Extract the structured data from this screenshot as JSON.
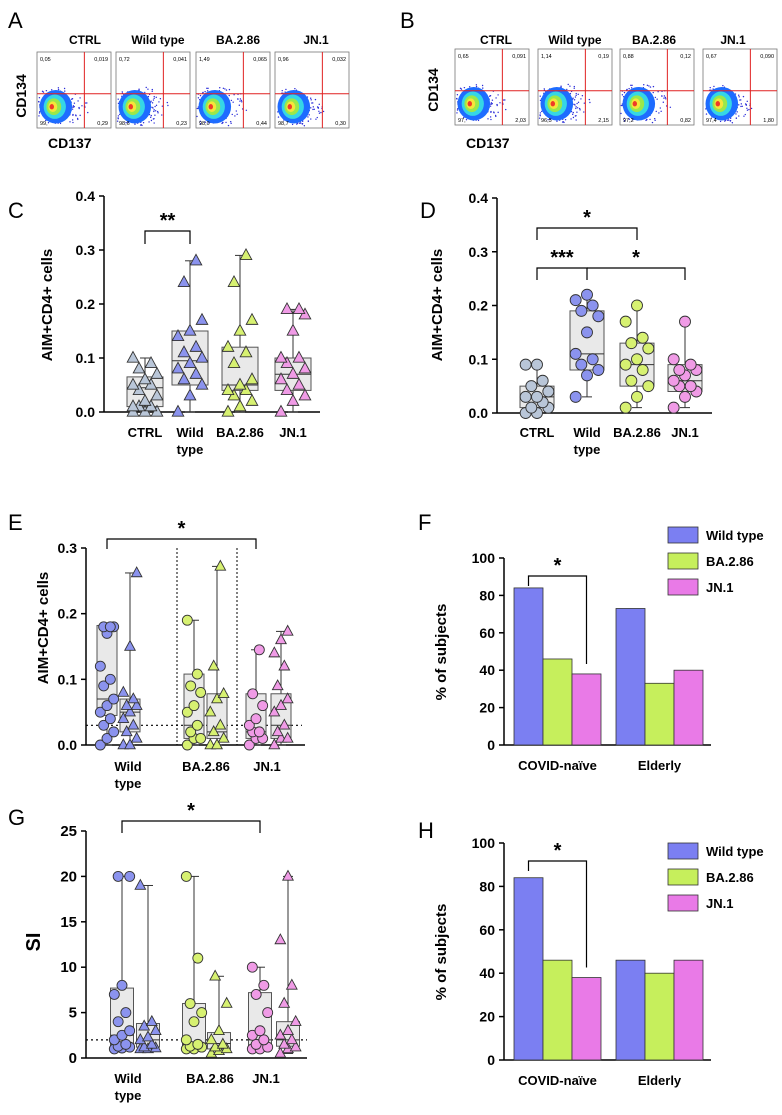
{
  "figure": {
    "letters": {
      "A": "A",
      "B": "B",
      "C": "C",
      "D": "D",
      "E": "E",
      "F": "F",
      "G": "G",
      "H": "H"
    }
  },
  "colors": {
    "wt": "#8b93ee",
    "ba": "#d7f171",
    "jn": "#f09be6",
    "ctrl": "#b9c6d8",
    "bar_wt": "#7b7ff2",
    "bar_ba": "#c6ef5c",
    "bar_jn": "#e97ae7"
  },
  "flow": {
    "A": {
      "ylabel": "CD134",
      "xlabel": "CD137",
      "headers": [
        "CTRL",
        "Wild type",
        "BA.2.86",
        "JN.1"
      ],
      "quads": [
        {
          "ul": "0,05",
          "ur": "0,019",
          "ll": "99,",
          "lr": "0,29"
        },
        {
          "ul": "0,72",
          "ur": "0,041",
          "ll": "98,6",
          "lr": "0,23"
        },
        {
          "ul": "1,49",
          "ur": "0,065",
          "ll": "98,0",
          "lr": "0,44"
        },
        {
          "ul": "0,96",
          "ur": "0,032",
          "ll": "98,7",
          "lr": "0,30"
        }
      ]
    },
    "B": {
      "ylabel": "CD134",
      "xlabel": "CD137",
      "headers": [
        "CTRL",
        "Wild type",
        "BA.2.86",
        "JN.1"
      ],
      "quads": [
        {
          "ul": "0,65",
          "ur": "0,091",
          "ll": "97,",
          "lr": "2,03"
        },
        {
          "ul": "1,14",
          "ur": "0,19",
          "ll": "96,5",
          "lr": "2,15"
        },
        {
          "ul": "0,88",
          "ur": "0,12",
          "ll": "97,2",
          "lr": "0,82"
        },
        {
          "ul": "0,67",
          "ur": "0,090",
          "ll": "97,4",
          "lr": "1,80"
        }
      ]
    }
  },
  "chart_data": [
    {
      "panel": "C",
      "type": "box",
      "ylabel": "AIM+CD4+ cells",
      "ylim": [
        0,
        0.4
      ],
      "yticks": [
        "0.0",
        "0.1",
        "0.2",
        "0.3",
        "0.4"
      ],
      "categories": [
        "CTRL",
        "Wild type",
        "BA.2.86",
        "JN.1"
      ],
      "boxes": [
        {
          "name": "CTRL",
          "min": 0.0,
          "q1": 0.01,
          "median": 0.045,
          "q3": 0.065,
          "max": 0.1,
          "points": [
            0.0,
            0.0,
            0.0,
            0.01,
            0.01,
            0.01,
            0.02,
            0.03,
            0.04,
            0.05,
            0.05,
            0.06,
            0.07,
            0.08,
            0.09,
            0.1
          ]
        },
        {
          "name": "Wild type",
          "min": 0.0,
          "q1": 0.05,
          "median": 0.095,
          "q3": 0.15,
          "max": 0.28,
          "points": [
            0.0,
            0.03,
            0.05,
            0.06,
            0.07,
            0.08,
            0.09,
            0.1,
            0.11,
            0.12,
            0.14,
            0.15,
            0.17,
            0.24,
            0.28
          ]
        },
        {
          "name": "BA.2.86",
          "min": 0.0,
          "q1": 0.04,
          "median": 0.05,
          "q3": 0.12,
          "max": 0.29,
          "points": [
            0.0,
            0.01,
            0.02,
            0.03,
            0.04,
            0.04,
            0.05,
            0.06,
            0.09,
            0.11,
            0.12,
            0.15,
            0.17,
            0.24,
            0.29
          ]
        },
        {
          "name": "JN.1",
          "min": 0.0,
          "q1": 0.04,
          "median": 0.07,
          "q3": 0.1,
          "max": 0.19,
          "points": [
            0.0,
            0.02,
            0.03,
            0.04,
            0.05,
            0.06,
            0.07,
            0.08,
            0.09,
            0.1,
            0.1,
            0.15,
            0.18,
            0.19,
            0.19
          ]
        }
      ],
      "significance": [
        {
          "from": "CTRL",
          "to": "Wild type",
          "label": "**"
        }
      ]
    },
    {
      "panel": "D",
      "type": "box",
      "ylabel": "AIM+CD4+ cells",
      "ylim": [
        0,
        0.4
      ],
      "yticks": [
        "0.0",
        "0.1",
        "0.2",
        "0.3",
        "0.4"
      ],
      "categories": [
        "CTRL",
        "Wild type",
        "BA.2.86",
        "JN.1"
      ],
      "boxes": [
        {
          "name": "CTRL",
          "min": 0.0,
          "q1": 0.01,
          "median": 0.03,
          "q3": 0.05,
          "max": 0.09,
          "points": [
            0.0,
            0.0,
            0.01,
            0.01,
            0.02,
            0.03,
            0.03,
            0.04,
            0.05,
            0.06,
            0.09,
            0.09
          ]
        },
        {
          "name": "Wild type",
          "min": 0.03,
          "q1": 0.08,
          "median": 0.11,
          "q3": 0.19,
          "max": 0.22,
          "points": [
            0.03,
            0.07,
            0.08,
            0.09,
            0.1,
            0.11,
            0.15,
            0.18,
            0.19,
            0.2,
            0.21,
            0.22
          ]
        },
        {
          "name": "BA.2.86",
          "min": 0.01,
          "q1": 0.05,
          "median": 0.09,
          "q3": 0.13,
          "max": 0.2,
          "points": [
            0.01,
            0.03,
            0.05,
            0.06,
            0.08,
            0.09,
            0.1,
            0.12,
            0.13,
            0.14,
            0.17,
            0.2
          ]
        },
        {
          "name": "JN.1",
          "min": 0.01,
          "q1": 0.04,
          "median": 0.06,
          "q3": 0.09,
          "max": 0.17,
          "points": [
            0.01,
            0.03,
            0.04,
            0.05,
            0.05,
            0.06,
            0.07,
            0.08,
            0.08,
            0.09,
            0.1,
            0.17
          ]
        }
      ],
      "significance": [
        {
          "from": "CTRL",
          "to": "Wild type",
          "label": "***"
        },
        {
          "from": "Wild type",
          "to": "JN.1",
          "label": "*"
        },
        {
          "from": "CTRL",
          "to": "BA.2.86",
          "label": "*"
        }
      ]
    },
    {
      "panel": "E",
      "type": "box",
      "ylabel": "AIM+CD4+ cells",
      "ylim": [
        0,
        0.3
      ],
      "yticks": [
        "0.0",
        "0.1",
        "0.2",
        "0.3"
      ],
      "categories": [
        "Wild type",
        "BA.2.86",
        "JN.1"
      ],
      "threshold": 0.03,
      "boxes": [
        {
          "name": "Wild type · COVID-naïve",
          "shape": "circle",
          "min": 0.0,
          "q1": 0.045,
          "median": 0.07,
          "q3": 0.182,
          "max": 0.182,
          "points": [
            0.0,
            0.01,
            0.02,
            0.03,
            0.04,
            0.05,
            0.06,
            0.07,
            0.09,
            0.1,
            0.12,
            0.17,
            0.18,
            0.18,
            0.18
          ]
        },
        {
          "name": "Wild type · Elderly",
          "shape": "triangle",
          "min": 0.0,
          "q1": 0.02,
          "median": 0.05,
          "q3": 0.07,
          "max": 0.262,
          "points": [
            0.0,
            0.0,
            0.01,
            0.02,
            0.03,
            0.04,
            0.05,
            0.06,
            0.06,
            0.07,
            0.08,
            0.15,
            0.262
          ]
        },
        {
          "name": "BA.2.86 · COVID-naïve",
          "shape": "circle",
          "min": 0.0,
          "q1": 0.01,
          "median": 0.03,
          "q3": 0.108,
          "max": 0.19,
          "points": [
            0.0,
            0.01,
            0.01,
            0.02,
            0.03,
            0.05,
            0.06,
            0.08,
            0.09,
            0.108,
            0.19
          ]
        },
        {
          "name": "BA.2.86 · Elderly",
          "shape": "triangle",
          "min": 0.0,
          "q1": 0.01,
          "median": 0.02,
          "q3": 0.078,
          "max": 0.272,
          "points": [
            0.0,
            0.0,
            0.01,
            0.02,
            0.03,
            0.05,
            0.07,
            0.078,
            0.12,
            0.272
          ]
        },
        {
          "name": "JN.1 · COVID-naïve",
          "shape": "circle",
          "min": 0.0,
          "q1": 0.01,
          "median": 0.02,
          "q3": 0.078,
          "max": 0.145,
          "points": [
            0.0,
            0.01,
            0.01,
            0.02,
            0.02,
            0.03,
            0.04,
            0.06,
            0.078,
            0.145
          ]
        },
        {
          "name": "JN.1 · Elderly",
          "shape": "triangle",
          "min": 0.0,
          "q1": 0.01,
          "median": 0.03,
          "q3": 0.078,
          "max": 0.173,
          "points": [
            0.0,
            0.01,
            0.01,
            0.02,
            0.03,
            0.05,
            0.06,
            0.07,
            0.09,
            0.12,
            0.14,
            0.16,
            0.173
          ]
        }
      ],
      "significance": [
        {
          "from": "Wild type",
          "to": "JN.1",
          "label": "*"
        }
      ]
    },
    {
      "panel": "F",
      "type": "bar",
      "ylabel": "% of subjects",
      "ylim": [
        0,
        100
      ],
      "yticks": [
        "0",
        "20",
        "40",
        "60",
        "80",
        "100"
      ],
      "categories": [
        "COVID-naïve",
        "Elderly"
      ],
      "series": [
        {
          "name": "Wild type",
          "values": [
            84,
            73
          ]
        },
        {
          "name": "BA.2.86",
          "values": [
            46,
            33
          ]
        },
        {
          "name": "JN.1",
          "values": [
            38,
            40
          ]
        }
      ],
      "legend": "top-right",
      "significance": [
        {
          "group": "COVID-naïve",
          "from": "Wild type",
          "to": "JN.1",
          "label": "*"
        }
      ]
    },
    {
      "panel": "G",
      "type": "box",
      "ylabel": "SI",
      "ylim": [
        0,
        25
      ],
      "yticks": [
        "0",
        "5",
        "10",
        "15",
        "20",
        "25"
      ],
      "categories": [
        "Wild type",
        "BA.2.86",
        "JN.1"
      ],
      "threshold": 2,
      "boxes": [
        {
          "name": "Wild type · COVID-naïve",
          "shape": "circle",
          "min": 1,
          "q1": 1.3,
          "median": 2.5,
          "q3": 7.7,
          "max": 20,
          "points": [
            1,
            1.1,
            1.2,
            1.3,
            1.5,
            2,
            2.5,
            3,
            4,
            5,
            7,
            8,
            20,
            20
          ]
        },
        {
          "name": "Wild type · Elderly",
          "shape": "triangle",
          "min": 1,
          "q1": 1.2,
          "median": 2,
          "q3": 3.8,
          "max": 19,
          "points": [
            1,
            1,
            1.1,
            1.2,
            1.5,
            2,
            2.3,
            3,
            3.5,
            4,
            19
          ]
        },
        {
          "name": "BA.2.86 · COVID-naïve",
          "shape": "circle",
          "min": 1,
          "q1": 1.2,
          "median": 1.5,
          "q3": 6,
          "max": 20,
          "points": [
            1,
            1,
            1.2,
            1.3,
            1.5,
            2,
            4,
            5,
            6,
            11,
            20
          ]
        },
        {
          "name": "BA.2.86 · Elderly",
          "shape": "triangle",
          "min": 0.5,
          "q1": 1,
          "median": 1.6,
          "q3": 2.8,
          "max": 9,
          "points": [
            0.5,
            0.8,
            1,
            1.2,
            1.5,
            2,
            3,
            6,
            9
          ]
        },
        {
          "name": "JN.1 · COVID-naïve",
          "shape": "circle",
          "min": 1,
          "q1": 1.2,
          "median": 2,
          "q3": 7.2,
          "max": 10,
          "points": [
            1,
            1,
            1.2,
            1.5,
            2,
            2.5,
            3,
            5,
            7,
            8,
            10
          ]
        },
        {
          "name": "JN.1 · Elderly",
          "shape": "triangle",
          "min": 0.5,
          "q1": 1.3,
          "median": 2,
          "q3": 4,
          "max": 20,
          "points": [
            0.5,
            1,
            1.2,
            1.5,
            2,
            2.5,
            3,
            4,
            6,
            8,
            13,
            20
          ]
        }
      ],
      "significance": [
        {
          "from": "Wild type",
          "to": "JN.1",
          "label": "*"
        }
      ]
    },
    {
      "panel": "H",
      "type": "bar",
      "ylabel": "% of subjects",
      "ylim": [
        0,
        100
      ],
      "yticks": [
        "0",
        "20",
        "40",
        "60",
        "80",
        "100"
      ],
      "categories": [
        "COVID-naïve",
        "Elderly"
      ],
      "series": [
        {
          "name": "Wild type",
          "values": [
            84,
            46
          ]
        },
        {
          "name": "BA.2.86",
          "values": [
            46,
            40
          ]
        },
        {
          "name": "JN.1",
          "values": [
            38,
            46
          ]
        }
      ],
      "legend": "top-right",
      "significance": [
        {
          "group": "COVID-naïve",
          "from": "Wild type",
          "to": "JN.1",
          "label": "*"
        }
      ]
    }
  ]
}
